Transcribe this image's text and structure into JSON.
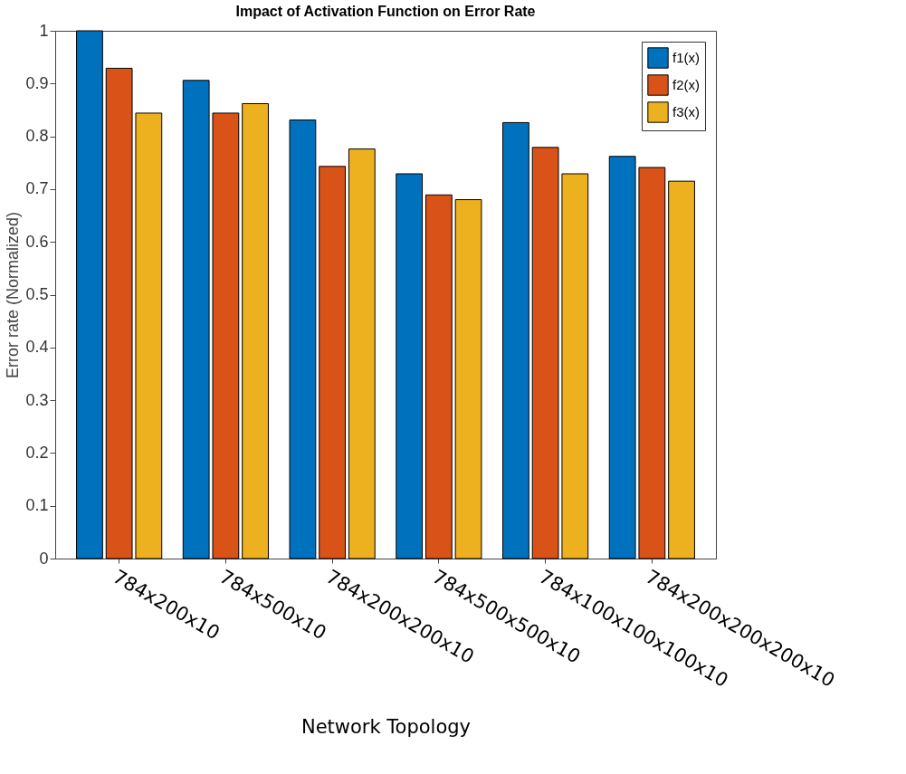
{
  "chart_data": {
    "type": "bar",
    "title": "Impact of Activation Function on Error Rate",
    "xlabel": "Network Topology",
    "ylabel": "Error rate (Normalized)",
    "categories": [
      "784x200x10",
      "784x500x10",
      "784x200x200x10",
      "784x500x500x10",
      "784x100x100x100x10",
      "784x200x200x200x10"
    ],
    "series": [
      {
        "name": "f1(x)",
        "color": "#0072bd",
        "values": [
          1.0,
          0.906,
          0.831,
          0.729,
          0.826,
          0.762
        ]
      },
      {
        "name": "f2(x)",
        "color": "#d95319",
        "values": [
          0.929,
          0.844,
          0.743,
          0.689,
          0.779,
          0.741
        ]
      },
      {
        "name": "f3(x)",
        "color": "#edb120",
        "values": [
          0.844,
          0.862,
          0.776,
          0.68,
          0.729,
          0.715
        ]
      }
    ],
    "ylim": [
      0,
      1
    ],
    "yticks": [
      0,
      0.1,
      0.2,
      0.3,
      0.4,
      0.5,
      0.6,
      0.7,
      0.8,
      0.9,
      1
    ],
    "grid": false,
    "legend": "top right"
  }
}
